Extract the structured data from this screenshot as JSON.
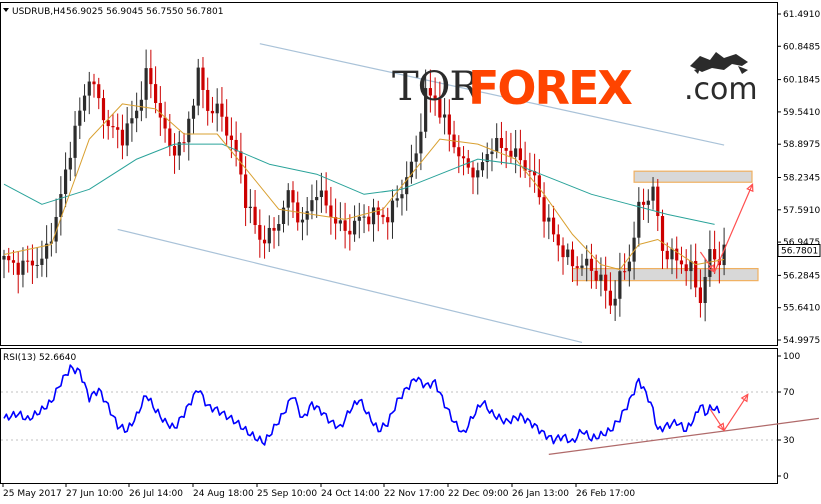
{
  "header": {
    "symbol": "USDRUB,H4",
    "ohlc": "56.9025 56.9045 56.7550 56.7801",
    "rsi_label": "RSI(13) 52.6640"
  },
  "logo": {
    "part1": "TOR",
    "part2": "FOREX",
    "part3": ".com"
  },
  "colors": {
    "bull": "#2c2c2c",
    "bear": "#cc0000",
    "ma_fast": "#d9a030",
    "ma_slow": "#2aa39a",
    "channel": "#a9c2d8",
    "zone_fill": "#d8d8d8",
    "zone_border": "#f0b060",
    "arrow": "#ff5050",
    "rsi_line": "#0000ff",
    "rsi_trend": "#b06a6a"
  },
  "chart_data": [
    {
      "type": "candlestick",
      "title": "USDRUB,H4",
      "ylim": [
        54.9975,
        61.491
      ],
      "yticks": [
        "61.4910",
        "60.8485",
        "60.1845",
        "59.5410",
        "58.8975",
        "58.2345",
        "57.5910",
        "56.9475",
        "56.2845",
        "55.6410",
        "54.9975"
      ],
      "last_price_label": "56.7801",
      "xticks": [
        "25 May 2017",
        "27 Jun 10:00",
        "26 Jul 14:00",
        "24 Aug 18:00",
        "25 Sep 10:00",
        "24 Oct 14:00",
        "22 Nov 17:00",
        "22 Dec 09:00",
        "26 Jan 13:00",
        "26 Feb 17:00"
      ],
      "price_path": [
        [
          0,
          56.6
        ],
        [
          3,
          56.45
        ],
        [
          6,
          56.55
        ],
        [
          8,
          56.55
        ],
        [
          11,
          57.4
        ],
        [
          14,
          58.8
        ],
        [
          18,
          60.25
        ],
        [
          22,
          59.25
        ],
        [
          25,
          59.05
        ],
        [
          28,
          59.55
        ],
        [
          30,
          60.3
        ],
        [
          32,
          59.8
        ],
        [
          35,
          58.8
        ],
        [
          38,
          58.9
        ],
        [
          41,
          60.3
        ],
        [
          43,
          59.6
        ],
        [
          45,
          59.6
        ],
        [
          47,
          59.2
        ],
        [
          49,
          58.7
        ],
        [
          51,
          57.8
        ],
        [
          54,
          57.0
        ],
        [
          57,
          57.15
        ],
        [
          60,
          57.9
        ],
        [
          63,
          57.3
        ],
        [
          66,
          58.0
        ],
        [
          69,
          57.5
        ],
        [
          72,
          57.15
        ],
        [
          75,
          57.4
        ],
        [
          78,
          57.5
        ],
        [
          81,
          57.45
        ],
        [
          84,
          58.0
        ],
        [
          87,
          58.7
        ],
        [
          89,
          59.9
        ],
        [
          91,
          59.8
        ],
        [
          94,
          59.1
        ],
        [
          97,
          58.5
        ],
        [
          100,
          58.3
        ],
        [
          103,
          58.9
        ],
        [
          106,
          58.8
        ],
        [
          109,
          58.6
        ],
        [
          112,
          58.2
        ],
        [
          114,
          57.5
        ],
        [
          117,
          56.9
        ],
        [
          120,
          56.5
        ],
        [
          123,
          56.5
        ],
        [
          126,
          56.2
        ],
        [
          128,
          55.7
        ],
        [
          130,
          56.2
        ],
        [
          132,
          56.6
        ],
        [
          134,
          57.6
        ],
        [
          137,
          58.0
        ],
        [
          139,
          56.8
        ],
        [
          142,
          56.6
        ],
        [
          145,
          56.4
        ],
        [
          147,
          55.8
        ],
        [
          149,
          56.7
        ],
        [
          151,
          56.6
        ],
        [
          152,
          56.78
        ]
      ],
      "ma_fast_path": [
        [
          0,
          56.7
        ],
        [
          10,
          56.9
        ],
        [
          18,
          59.0
        ],
        [
          25,
          59.7
        ],
        [
          32,
          59.6
        ],
        [
          38,
          59.1
        ],
        [
          45,
          59.1
        ],
        [
          52,
          58.3
        ],
        [
          58,
          57.6
        ],
        [
          65,
          57.5
        ],
        [
          72,
          57.4
        ],
        [
          80,
          57.6
        ],
        [
          86,
          58.3
        ],
        [
          92,
          59.0
        ],
        [
          100,
          58.9
        ],
        [
          108,
          58.6
        ],
        [
          114,
          57.9
        ],
        [
          120,
          57.1
        ],
        [
          126,
          56.5
        ],
        [
          130,
          56.4
        ],
        [
          134,
          56.9
        ],
        [
          138,
          57.0
        ],
        [
          146,
          56.5
        ],
        [
          152,
          56.6
        ]
      ],
      "ma_slow_path": [
        [
          0,
          58.1
        ],
        [
          8,
          57.7
        ],
        [
          18,
          58.0
        ],
        [
          28,
          58.6
        ],
        [
          36,
          58.9
        ],
        [
          46,
          58.9
        ],
        [
          56,
          58.5
        ],
        [
          66,
          58.3
        ],
        [
          76,
          57.9
        ],
        [
          84,
          58.0
        ],
        [
          92,
          58.3
        ],
        [
          100,
          58.6
        ],
        [
          108,
          58.5
        ],
        [
          116,
          58.2
        ],
        [
          124,
          57.9
        ],
        [
          132,
          57.7
        ],
        [
          140,
          57.5
        ],
        [
          150,
          57.3
        ]
      ],
      "channel_upper": [
        [
          54,
          60.9
        ],
        [
          152,
          58.88
        ]
      ],
      "channel_lower": [
        [
          24,
          57.2
        ],
        [
          122,
          54.95
        ]
      ],
      "resistance_zone": [
        58.14,
        58.36
      ],
      "support_zone": [
        56.18,
        56.42
      ],
      "forecast_path": [
        [
          147,
          56.75
        ],
        [
          150,
          56.35
        ],
        [
          158,
          58.1
        ]
      ]
    },
    {
      "type": "line",
      "title": "RSI(13) 52.6640",
      "ylim": [
        0,
        100
      ],
      "yticks": [
        "100",
        "70",
        "30",
        "0"
      ],
      "rsi_path": [
        [
          0,
          48
        ],
        [
          3,
          52
        ],
        [
          5,
          47
        ],
        [
          8,
          55
        ],
        [
          10,
          62
        ],
        [
          12,
          78
        ],
        [
          14,
          90
        ],
        [
          16,
          87
        ],
        [
          18,
          65
        ],
        [
          20,
          72
        ],
        [
          22,
          58
        ],
        [
          24,
          42
        ],
        [
          26,
          38
        ],
        [
          28,
          50
        ],
        [
          30,
          68
        ],
        [
          32,
          55
        ],
        [
          34,
          45
        ],
        [
          36,
          40
        ],
        [
          38,
          52
        ],
        [
          41,
          73
        ],
        [
          43,
          58
        ],
        [
          45,
          55
        ],
        [
          47,
          50
        ],
        [
          49,
          45
        ],
        [
          51,
          38
        ],
        [
          53,
          32
        ],
        [
          55,
          28
        ],
        [
          57,
          40
        ],
        [
          59,
          52
        ],
        [
          61,
          68
        ],
        [
          63,
          47
        ],
        [
          65,
          60
        ],
        [
          67,
          54
        ],
        [
          69,
          45
        ],
        [
          71,
          40
        ],
        [
          73,
          55
        ],
        [
          75,
          64
        ],
        [
          77,
          50
        ],
        [
          79,
          38
        ],
        [
          81,
          44
        ],
        [
          83,
          62
        ],
        [
          85,
          73
        ],
        [
          87,
          82
        ],
        [
          89,
          75
        ],
        [
          91,
          78
        ],
        [
          93,
          60
        ],
        [
          95,
          45
        ],
        [
          97,
          35
        ],
        [
          99,
          50
        ],
        [
          101,
          62
        ],
        [
          103,
          52
        ],
        [
          106,
          45
        ],
        [
          109,
          50
        ],
        [
          112,
          42
        ],
        [
          114,
          35
        ],
        [
          116,
          30
        ],
        [
          118,
          33
        ],
        [
          120,
          28
        ],
        [
          122,
          38
        ],
        [
          124,
          31
        ],
        [
          126,
          34
        ],
        [
          128,
          38
        ],
        [
          130,
          48
        ],
        [
          132,
          62
        ],
        [
          134,
          80
        ],
        [
          136,
          65
        ],
        [
          137,
          55
        ],
        [
          138,
          38
        ],
        [
          140,
          42
        ],
        [
          142,
          45
        ],
        [
          144,
          38
        ],
        [
          146,
          50
        ],
        [
          147,
          60
        ],
        [
          148,
          52
        ],
        [
          149,
          56
        ],
        [
          150,
          57
        ],
        [
          151,
          53
        ]
      ],
      "forecast_path": [
        [
          149,
          56
        ],
        [
          152,
          38
        ],
        [
          157,
          68
        ]
      ],
      "trend_line": [
        [
          115,
          18
        ],
        [
          172,
          48
        ]
      ]
    }
  ]
}
